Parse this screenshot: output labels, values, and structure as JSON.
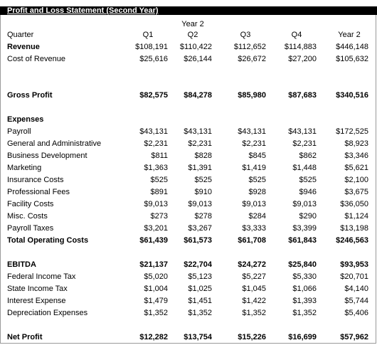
{
  "title": "Profit and Loss Statement (Second Year)",
  "year_label": "Year 2",
  "header": {
    "label": "Quarter",
    "cols": [
      "Q1",
      "Q2",
      "Q3",
      "Q4",
      "Year 2"
    ]
  },
  "rows": [
    {
      "label": "Revenue",
      "bold_label": true,
      "bold_vals": false,
      "vals": [
        "$108,191",
        "$110,422",
        "$112,652",
        "$114,883",
        "$446,148"
      ]
    },
    {
      "label": "Cost of Revenue",
      "bold_label": false,
      "bold_vals": false,
      "vals": [
        "$25,616",
        "$26,144",
        "$26,672",
        "$27,200",
        "$105,632"
      ]
    },
    {
      "label": "Gross Profit",
      "bold_label": true,
      "bold_vals": true,
      "vals": [
        "$82,575",
        "$84,278",
        "$85,980",
        "$87,683",
        "$340,516"
      ]
    },
    {
      "label": "Expenses",
      "bold_label": true,
      "bold_vals": false,
      "vals": [
        "",
        "",
        "",
        "",
        ""
      ]
    },
    {
      "label": "Payroll",
      "bold_label": false,
      "bold_vals": false,
      "vals": [
        "$43,131",
        "$43,131",
        "$43,131",
        "$43,131",
        "$172,525"
      ]
    },
    {
      "label": "General and Administrative",
      "bold_label": false,
      "bold_vals": false,
      "vals": [
        "$2,231",
        "$2,231",
        "$2,231",
        "$2,231",
        "$8,923"
      ]
    },
    {
      "label": "Business Development",
      "bold_label": false,
      "bold_vals": false,
      "vals": [
        "$811",
        "$828",
        "$845",
        "$862",
        "$3,346"
      ]
    },
    {
      "label": "Marketing",
      "bold_label": false,
      "bold_vals": false,
      "vals": [
        "$1,363",
        "$1,391",
        "$1,419",
        "$1,448",
        "$5,621"
      ]
    },
    {
      "label": "Insurance Costs",
      "bold_label": false,
      "bold_vals": false,
      "vals": [
        "$525",
        "$525",
        "$525",
        "$525",
        "$2,100"
      ]
    },
    {
      "label": "Professional Fees",
      "bold_label": false,
      "bold_vals": false,
      "vals": [
        "$891",
        "$910",
        "$928",
        "$946",
        "$3,675"
      ]
    },
    {
      "label": "Facility Costs",
      "bold_label": false,
      "bold_vals": false,
      "vals": [
        "$9,013",
        "$9,013",
        "$9,013",
        "$9,013",
        "$36,050"
      ]
    },
    {
      "label": "Misc. Costs",
      "bold_label": false,
      "bold_vals": false,
      "vals": [
        "$273",
        "$278",
        "$284",
        "$290",
        "$1,124"
      ]
    },
    {
      "label": "Payroll Taxes",
      "bold_label": false,
      "bold_vals": false,
      "vals": [
        "$3,201",
        "$3,267",
        "$3,333",
        "$3,399",
        "$13,198"
      ]
    },
    {
      "label": "Total Operating Costs",
      "bold_label": true,
      "bold_vals": true,
      "vals": [
        "$61,439",
        "$61,573",
        "$61,708",
        "$61,843",
        "$246,563"
      ]
    },
    {
      "label": "EBITDA",
      "bold_label": true,
      "bold_vals": true,
      "vals": [
        "$21,137",
        "$22,704",
        "$24,272",
        "$25,840",
        "$93,953"
      ]
    },
    {
      "label": "Federal Income Tax",
      "bold_label": false,
      "bold_vals": false,
      "vals": [
        "$5,020",
        "$5,123",
        "$5,227",
        "$5,330",
        "$20,701"
      ]
    },
    {
      "label": "State Income Tax",
      "bold_label": false,
      "bold_vals": false,
      "vals": [
        "$1,004",
        "$1,025",
        "$1,045",
        "$1,066",
        "$4,140"
      ]
    },
    {
      "label": "Interest Expense",
      "bold_label": false,
      "bold_vals": false,
      "vals": [
        "$1,479",
        "$1,451",
        "$1,422",
        "$1,393",
        "$5,744"
      ]
    },
    {
      "label": "Depreciation Expenses",
      "bold_label": false,
      "bold_vals": false,
      "vals": [
        "$1,352",
        "$1,352",
        "$1,352",
        "$1,352",
        "$5,406"
      ]
    },
    {
      "label": "Net Profit",
      "bold_label": true,
      "bold_vals": true,
      "vals": [
        "$12,282",
        "$13,754",
        "$15,226",
        "$16,699",
        "$57,962"
      ]
    }
  ]
}
